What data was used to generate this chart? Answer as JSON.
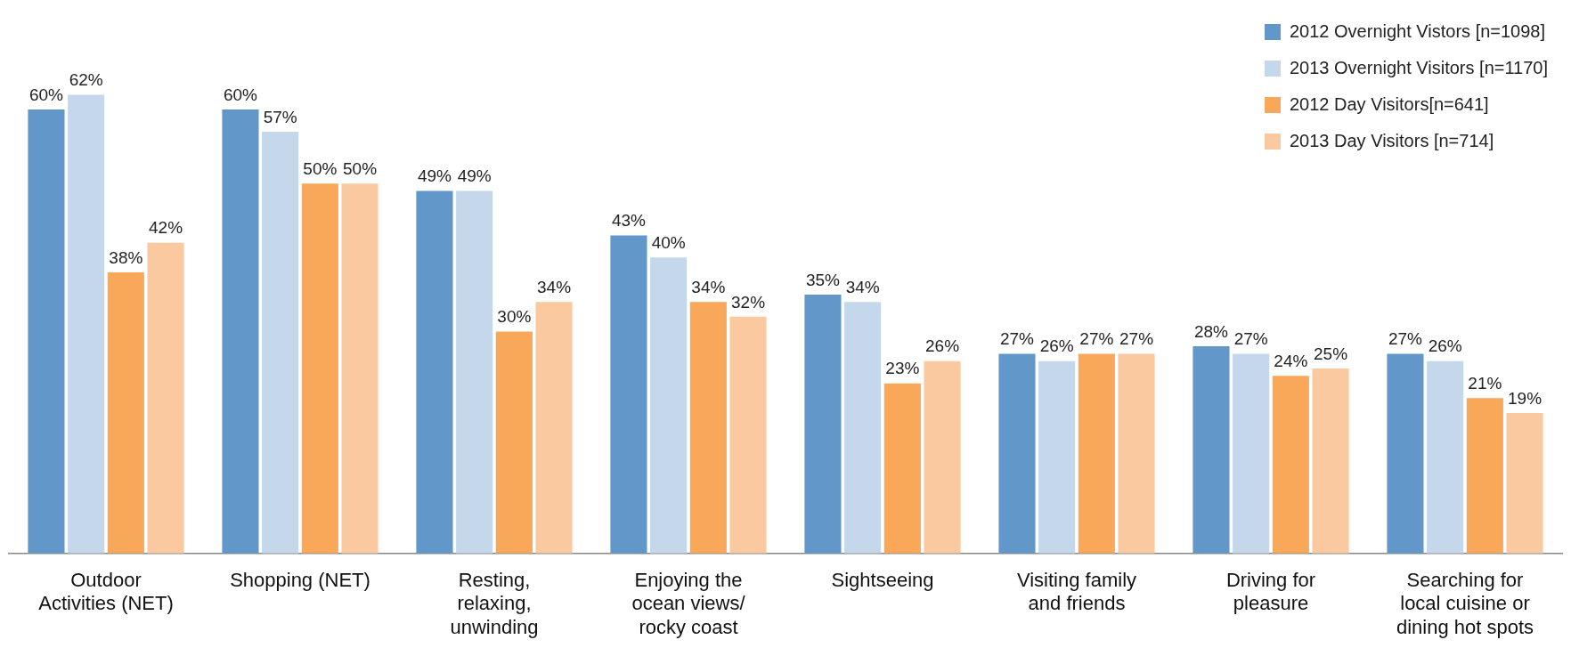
{
  "chart_data": {
    "type": "bar",
    "categories": [
      "Outdoor Activities (NET)",
      "Shopping (NET)",
      "Resting, relaxing, unwinding",
      "Enjoying the ocean views/ rocky coast",
      "Sightseeing",
      "Visiting family and friends",
      "Driving for pleasure",
      "Searching for local cuisine or dining hot spots"
    ],
    "series": [
      {
        "name": "2012 Overnight Vistors [n=1098]",
        "color": "#6297c9",
        "values": [
          60,
          60,
          49,
          43,
          35,
          27,
          28,
          27
        ],
        "value_labels": [
          "60%",
          "60%",
          "49%",
          "43%",
          "35%",
          "27%",
          "28%",
          "27%"
        ]
      },
      {
        "name": "2013 Overnight Visitors [n=1170]",
        "color": "#c5d7eb",
        "values": [
          62,
          57,
          49,
          40,
          34,
          26,
          27,
          26
        ],
        "value_labels": [
          "62%",
          "57%",
          "49%",
          "40%",
          "34%",
          "26%",
          "27%",
          "26%"
        ]
      },
      {
        "name": "2012 Day Visitors[n=641]",
        "color": "#f9a85a",
        "values": [
          38,
          50,
          30,
          34,
          23,
          27,
          24,
          21
        ],
        "value_labels": [
          "38%",
          "50%",
          "30%",
          "34%",
          "23%",
          "27%",
          "24%",
          "21%"
        ]
      },
      {
        "name": "2013 Day Visitors [n=714]",
        "color": "#fbc99f",
        "values": [
          42,
          50,
          34,
          32,
          26,
          27,
          25,
          19
        ],
        "value_labels": [
          "42%",
          "50%",
          "34%",
          "32%",
          "26%",
          "27%",
          "25%",
          "19%"
        ]
      }
    ],
    "legend": "top right",
    "tick_labels": "x",
    "grid": false
  }
}
